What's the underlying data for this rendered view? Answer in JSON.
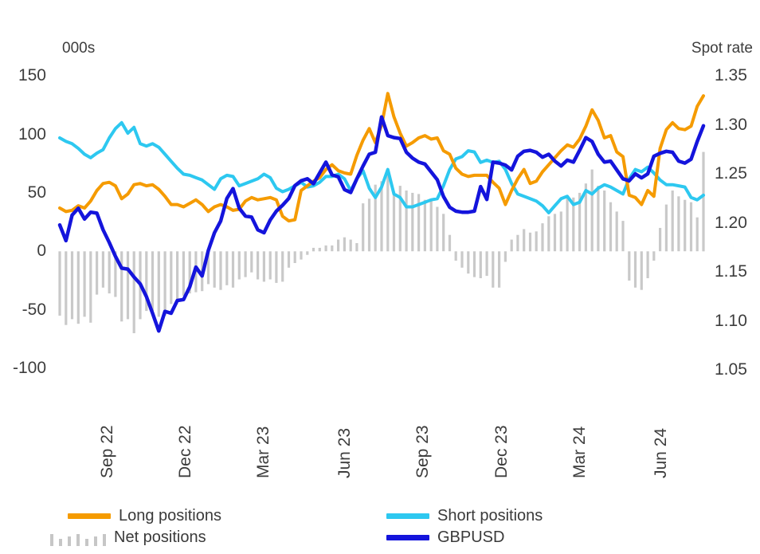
{
  "page": {
    "background": "#ffffff"
  },
  "chart_data": {
    "type": "combo-bar-line",
    "n_points": 105,
    "x_axis": {
      "unit": "weekly",
      "tick_labels": [
        "Sep 22",
        "Dec 22",
        "Mar 23",
        "Jun 23",
        "Sep 23",
        "Dec 23",
        "Mar 24",
        "Jun 24"
      ],
      "tick_positions_weeks": [
        10.5,
        23.2,
        35.8,
        48.9,
        61.5,
        74.3,
        86.9,
        100.0
      ]
    },
    "left_axis": {
      "title": "000s",
      "tick_labels": [
        "150",
        "100",
        "50",
        "0",
        "-50",
        "-100"
      ],
      "tick_values": [
        150,
        100,
        50,
        0,
        -50,
        -100
      ],
      "range": [
        -105.5,
        157
      ]
    },
    "right_axis": {
      "title": "Spot rate",
      "tick_labels": [
        "1.35",
        "1.30",
        "1.25",
        "1.20",
        "1.15",
        "1.10",
        "1.05"
      ],
      "tick_values": [
        1.35,
        1.3,
        1.25,
        1.2,
        1.15,
        1.1,
        1.05
      ],
      "range": [
        1.0455,
        1.3581
      ]
    },
    "series": [
      {
        "name": "Net positions",
        "type": "bar",
        "axis": "left",
        "color": "#c9c9c9",
        "values": [
          -55,
          -63,
          -58,
          -62,
          -56,
          -61,
          -37,
          -31,
          -36,
          -39,
          -60,
          -58,
          -70,
          -58,
          -51,
          -51,
          -56,
          -55,
          -45,
          -41,
          -38,
          -36,
          -35,
          -34,
          -28,
          -31,
          -33,
          -29,
          -31,
          -24,
          -22,
          -18,
          -24,
          -26,
          -24,
          -27,
          -26,
          -14,
          -10,
          -7,
          -3,
          3,
          3,
          5,
          5,
          10,
          12,
          10,
          7,
          41,
          45,
          57,
          60,
          69,
          51,
          56,
          52,
          50,
          49,
          44,
          44,
          38,
          32,
          14,
          -8,
          -14,
          -19,
          -22,
          -23,
          -21,
          -31,
          -31,
          -9,
          10,
          14,
          19,
          16,
          17,
          24,
          30,
          32,
          34,
          48,
          46,
          50,
          58,
          70,
          56,
          52,
          42,
          34,
          26,
          -25,
          -31,
          -33,
          -23,
          -8,
          20,
          40,
          52,
          47,
          44,
          42,
          29,
          85
        ]
      },
      {
        "name": "Short positions",
        "type": "line",
        "axis": "left",
        "color": "#2dc8f0",
        "values": [
          97,
          94,
          92,
          88,
          83,
          80,
          84,
          87,
          97,
          105,
          110,
          101,
          106,
          92,
          90,
          92,
          89,
          83,
          77,
          71,
          66,
          65,
          63,
          61,
          57,
          53,
          62,
          65,
          64,
          56,
          58,
          60,
          62,
          66,
          63,
          54,
          51,
          53,
          56,
          59,
          55,
          56,
          59,
          64,
          64,
          66,
          62,
          52,
          62,
          69,
          54,
          46,
          55,
          70,
          49,
          46,
          38,
          38,
          40,
          42,
          44,
          45,
          56,
          70,
          79,
          81,
          86,
          85,
          76,
          78,
          76,
          77,
          70,
          58,
          49,
          47,
          45,
          43,
          39,
          33,
          39,
          45,
          47,
          40,
          42,
          52,
          49,
          54,
          57,
          55,
          52,
          49,
          62,
          70,
          68,
          72,
          67,
          61,
          57,
          57,
          56,
          55,
          46,
          44,
          48
        ]
      },
      {
        "name": "Long positions",
        "type": "line",
        "axis": "left",
        "color": "#f59b00",
        "values": [
          37,
          34,
          35,
          39,
          37,
          43,
          52,
          58,
          59,
          56,
          45,
          49,
          57,
          58,
          56,
          57,
          53,
          47,
          40,
          40,
          38,
          41,
          44,
          40,
          34,
          38,
          40,
          38,
          35,
          36,
          43,
          46,
          44,
          45,
          46,
          44,
          30,
          26,
          27,
          52,
          56,
          60,
          63,
          70,
          74,
          69,
          67,
          66,
          82,
          95,
          105,
          93,
          108,
          135,
          115,
          101,
          90,
          93,
          97,
          99,
          96,
          97,
          86,
          83,
          71,
          66,
          64,
          65,
          65,
          65,
          59,
          54,
          40,
          52,
          62,
          70,
          58,
          60,
          68,
          74,
          80,
          86,
          91,
          89,
          96,
          107,
          121,
          112,
          97,
          99,
          85,
          81,
          48,
          46,
          40,
          52,
          47,
          88,
          104,
          110,
          105,
          104,
          107,
          124,
          133
        ]
      },
      {
        "name": "GBPUSD",
        "type": "line",
        "axis": "right",
        "color": "#1414dc",
        "values": [
          1.198,
          1.182,
          1.208,
          1.215,
          1.204,
          1.211,
          1.21,
          1.193,
          1.18,
          1.166,
          1.154,
          1.153,
          1.145,
          1.138,
          1.125,
          1.108,
          1.09,
          1.11,
          1.108,
          1.121,
          1.122,
          1.135,
          1.155,
          1.146,
          1.172,
          1.19,
          1.202,
          1.225,
          1.235,
          1.215,
          1.207,
          1.206,
          1.193,
          1.19,
          1.203,
          1.212,
          1.218,
          1.225,
          1.238,
          1.243,
          1.245,
          1.24,
          1.251,
          1.262,
          1.249,
          1.247,
          1.234,
          1.231,
          1.245,
          1.258,
          1.27,
          1.272,
          1.308,
          1.289,
          1.287,
          1.286,
          1.272,
          1.266,
          1.262,
          1.26,
          1.252,
          1.244,
          1.227,
          1.216,
          1.212,
          1.211,
          1.211,
          1.212,
          1.237,
          1.224,
          1.262,
          1.261,
          1.259,
          1.254,
          1.268,
          1.273,
          1.274,
          1.272,
          1.267,
          1.27,
          1.263,
          1.258,
          1.264,
          1.262,
          1.274,
          1.287,
          1.283,
          1.27,
          1.262,
          1.263,
          1.254,
          1.245,
          1.243,
          1.25,
          1.246,
          1.25,
          1.268,
          1.271,
          1.273,
          1.272,
          1.263,
          1.261,
          1.265,
          1.283,
          1.299
        ]
      }
    ],
    "legend_position": "bottom",
    "grid": "off"
  }
}
